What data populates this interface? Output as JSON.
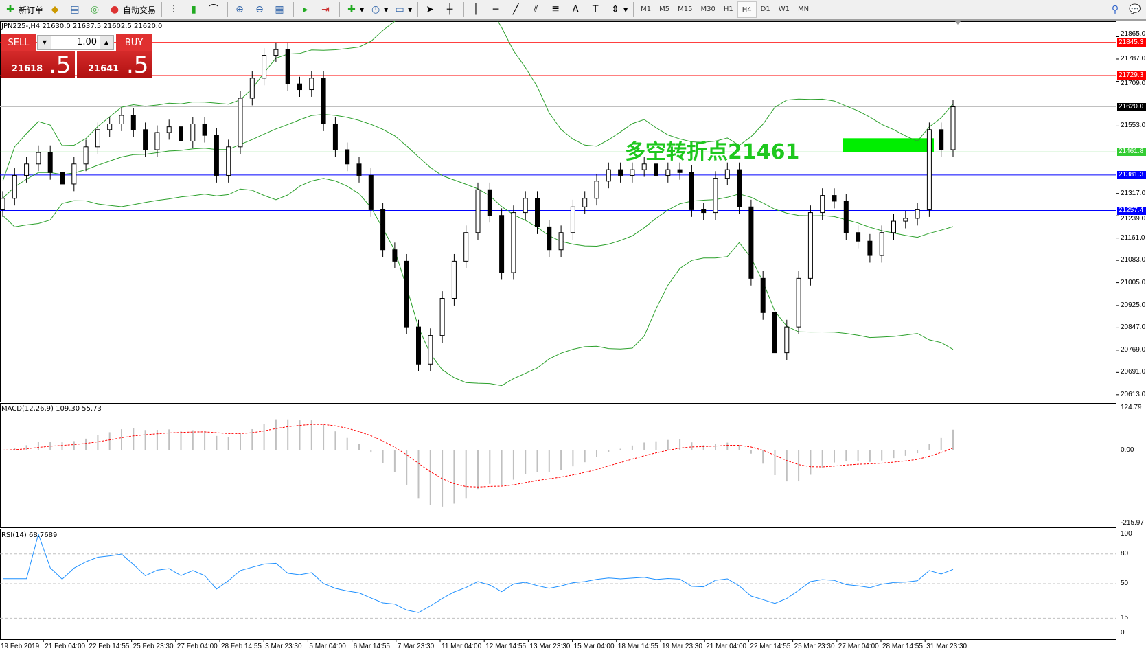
{
  "toolbar": {
    "new_order": "新订单",
    "auto_trading": "自动交易",
    "timeframes": [
      "M1",
      "M5",
      "M15",
      "M30",
      "H1",
      "H4",
      "D1",
      "W1",
      "MN"
    ],
    "active_timeframe": "H4"
  },
  "chart_header": "JPN225-,H4  21630.0 21637.5 21602.5 21620.0",
  "trade_panel": {
    "sell_label": "SELL",
    "buy_label": "BUY",
    "lot": "1.00",
    "sell_main": "21618",
    "sell_frac": ".5",
    "buy_main": "21641",
    "buy_frac": ".5"
  },
  "annotation": "多空转折点21461",
  "colors": {
    "up_candle": "#ffffff",
    "down_candle": "#000000",
    "bands": "#2ca02c",
    "macd_hist": "#c0c0c0",
    "macd_signal": "#ff0000",
    "rsi": "#1e90ff",
    "pivot": "#00ee00"
  },
  "price_lines": [
    {
      "value": "21845.3",
      "color": "#ff0000"
    },
    {
      "value": "21729.3",
      "color": "#ff0000"
    },
    {
      "value": "21620.0",
      "color": "#000000",
      "line": "#c0c0c0"
    },
    {
      "value": "21461.8",
      "color": "#33cc33"
    },
    {
      "value": "21381.3",
      "color": "#0000ff"
    },
    {
      "value": "21257.4",
      "color": "#0000ff"
    }
  ],
  "price_axis": [
    "21865.0",
    "21787.0",
    "21709.0",
    "21553.0",
    "21317.0",
    "21239.0",
    "21161.0",
    "21083.0",
    "21005.0",
    "20925.0",
    "20847.0",
    "20769.0",
    "20691.0",
    "20613.0"
  ],
  "time_axis": [
    "19 Feb 2019",
    "21 Feb 04:00",
    "22 Feb 14:55",
    "25 Feb 23:30",
    "27 Feb 04:00",
    "28 Feb 14:55",
    "3 Mar 23:30",
    "5 Mar 04:00",
    "6 Mar 14:55",
    "7 Mar 23:30",
    "11 Mar 04:00",
    "12 Mar 14:55",
    "13 Mar 23:30",
    "15 Mar 04:00",
    "18 Mar 14:55",
    "19 Mar 23:30",
    "21 Mar 04:00",
    "22 Mar 14:55",
    "25 Mar 23:30",
    "27 Mar 04:00",
    "28 Mar 14:55",
    "31 Mar 23:30"
  ],
  "macd": {
    "label": "MACD(12,26,9) 109.30 55.73",
    "axis": [
      "124.79",
      "0.00",
      "-215.97"
    ]
  },
  "rsi": {
    "label": "RSI(14) 68.7689",
    "axis": [
      "100",
      "80",
      "50",
      "15",
      "0"
    ]
  },
  "chart_data": {
    "type": "candlestick",
    "symbol": "JPN225-",
    "timeframe": "H4",
    "ylim": [
      20613,
      21865
    ],
    "close": [
      21300,
      21380,
      21420,
      21460,
      21390,
      21350,
      21420,
      21480,
      21540,
      21560,
      21590,
      21540,
      21470,
      21530,
      21550,
      21500,
      21560,
      21520,
      21380,
      21480,
      21650,
      21720,
      21800,
      21820,
      21700,
      21680,
      21720,
      21560,
      21470,
      21420,
      21380,
      21260,
      21120,
      21080,
      20850,
      20720,
      20820,
      20950,
      21080,
      21180,
      21330,
      21240,
      21040,
      21250,
      21300,
      21200,
      21120,
      21180,
      21270,
      21300,
      21360,
      21400,
      21380,
      21400,
      21420,
      21380,
      21400,
      21390,
      21260,
      21250,
      21370,
      21400,
      21270,
      21020,
      20900,
      20760,
      20850,
      21020,
      21250,
      21310,
      21290,
      21180,
      21150,
      21100,
      21180,
      21220,
      21230,
      21260,
      21540,
      21470,
      21620
    ],
    "pivot_zone": [
      21461,
      21510
    ],
    "macd_range": [
      -215.97,
      124.79
    ],
    "rsi_levels": [
      80,
      50,
      15
    ]
  }
}
